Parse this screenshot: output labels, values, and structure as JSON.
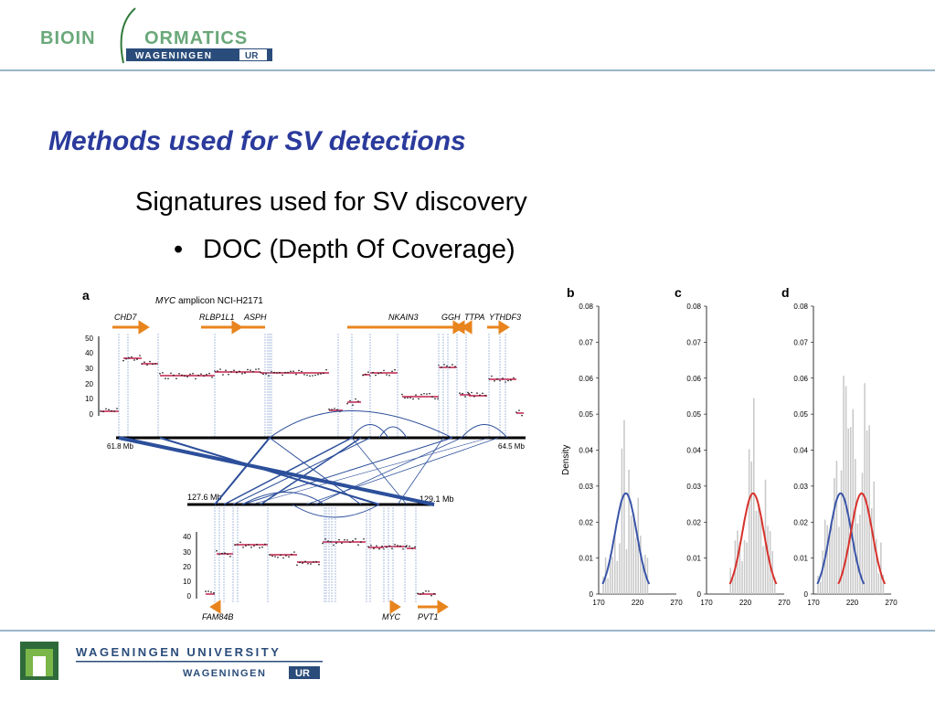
{
  "header": {
    "logo_text_a": "BIOIN",
    "logo_text_b": "ORMATICS",
    "logo_sub_a": "WAGENINGEN",
    "logo_sub_b": "UR"
  },
  "slide": {
    "title": "Methods used for SV detections",
    "subtitle": "Signatures used for SV discovery",
    "bullet": "DOC (Depth Of Coverage)"
  },
  "figure": {
    "panel_a": {
      "label": "a",
      "amplicon_gene": "MYC",
      "amplicon_rest": "amplicon NCI-H2171",
      "genes_top": [
        "CHD7",
        "RLBP1L1",
        "ASPH",
        "NKAIN3",
        "GGH",
        "TTPA",
        "YTHDF3"
      ],
      "genes_bottom": [
        "FAM84B",
        "MYC",
        "PVT1"
      ],
      "y_ticks_top": [
        "50",
        "40",
        "30",
        "20",
        "10",
        "0"
      ],
      "y_ticks_bottom": [
        "40",
        "30",
        "20",
        "10",
        "0"
      ],
      "top_left_coord": "61.8 Mb",
      "top_right_coord": "64.5 Mb",
      "bottom_left_coord": "127.6 Mb",
      "bottom_right_coord": "129.1 Mb"
    },
    "panels_bcd": {
      "labels": [
        "b",
        "c",
        "d"
      ],
      "ylabel": "Density",
      "y_ticks": [
        "0.08",
        "0.07",
        "0.06",
        "0.05",
        "0.04",
        "0.03",
        "0.02",
        "0.01",
        "0"
      ],
      "x_ticks": [
        "170",
        "220",
        "270"
      ]
    },
    "colors": {
      "blue_curve": "#3a55a8",
      "red_curve": "#d8312b",
      "orange_gene": "#e8841d",
      "link": "#2c4f9b"
    }
  },
  "footer": {
    "university": "WAGENINGEN UNIVERSITY",
    "sub_a": "WAGENINGEN",
    "sub_b": "UR"
  }
}
